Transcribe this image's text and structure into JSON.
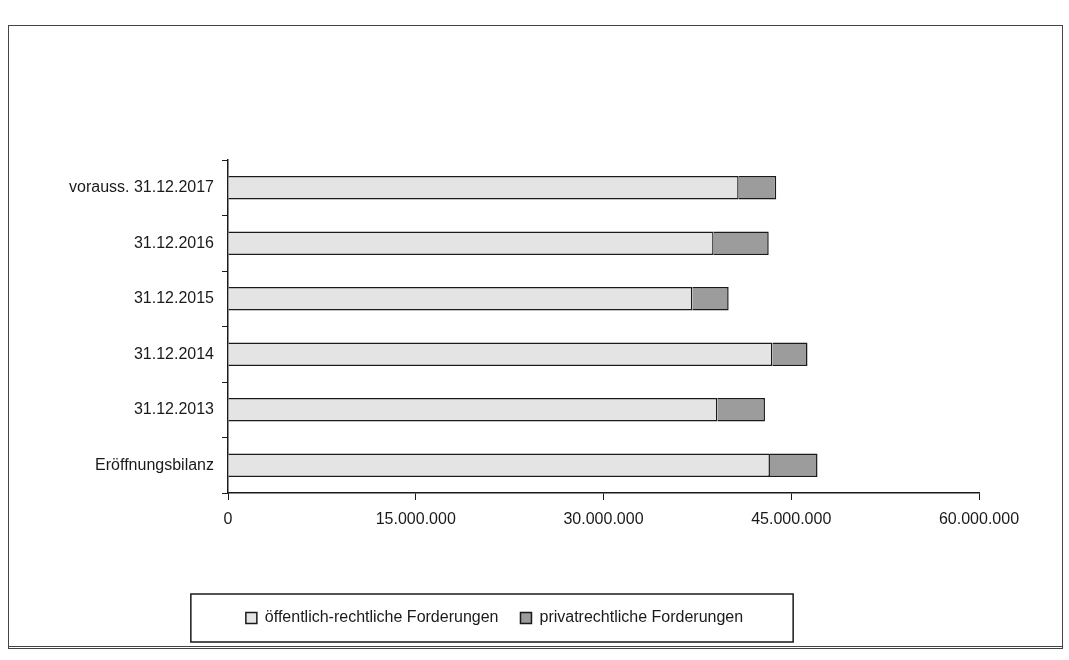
{
  "chart_data": {
    "type": "bar",
    "orientation": "horizontal",
    "stacked": true,
    "categories": [
      "vorauss. 31.12.2017",
      "31.12.2016",
      "31.12.2015",
      "31.12.2014",
      "31.12.2013",
      "Eröffnungsbilanz"
    ],
    "series": [
      {
        "name": "öffentlich-rechtliche Forderungen",
        "color": "#e4e4e4",
        "values": [
          40800000,
          38800000,
          37100000,
          43500000,
          39100000,
          43300000
        ]
      },
      {
        "name": "privatrechtliche Forderungen",
        "color": "#9c9c9c",
        "values": [
          3000000,
          4400000,
          2900000,
          2800000,
          3800000,
          3800000
        ]
      }
    ],
    "xlim": [
      0,
      60000000
    ],
    "xticks": [
      0,
      {
        "value": 15000000,
        "label": "15.000.000"
      },
      {
        "value": 30000000,
        "label": "30.000.000"
      },
      {
        "value": 45000000,
        "label": "45.000.000"
      },
      {
        "value": 60000000,
        "label": "60.000.000"
      }
    ],
    "grid": false,
    "legend": "bottom"
  }
}
